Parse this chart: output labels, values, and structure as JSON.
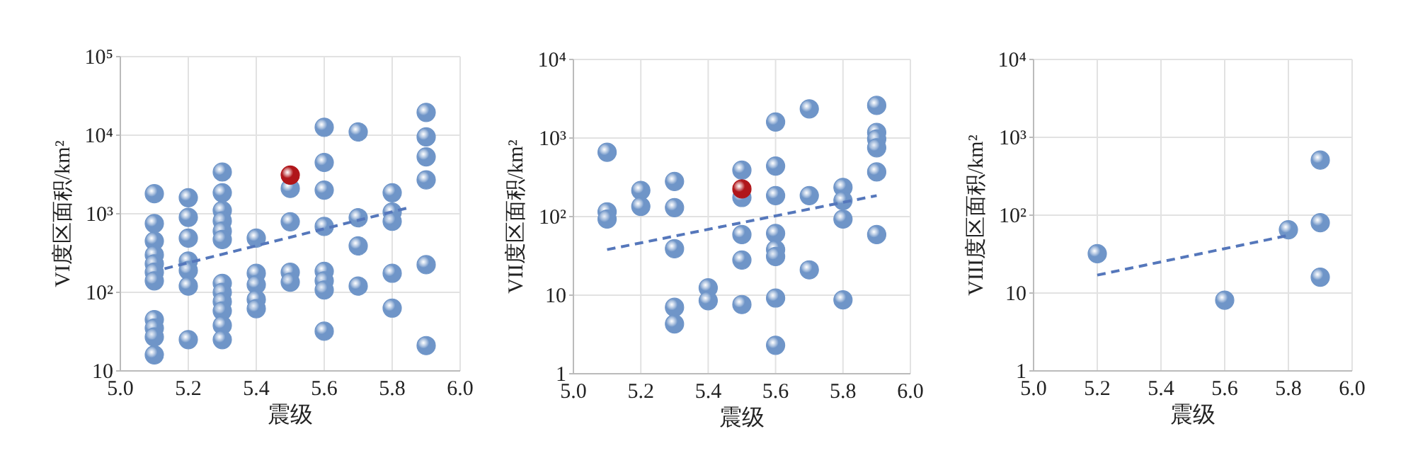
{
  "chart_data": [
    {
      "type": "scatter",
      "xlabel": "震级",
      "ylabel": "VI度区面积/km²",
      "xlim": [
        5.0,
        6.0
      ],
      "xticks": [
        {
          "value": 5.0,
          "label": "5.0"
        },
        {
          "value": 5.2,
          "label": "5.2"
        },
        {
          "value": 5.4,
          "label": "5.4"
        },
        {
          "value": 5.6,
          "label": "5.6"
        },
        {
          "value": 5.8,
          "label": "5.8"
        },
        {
          "value": 6.0,
          "label": "6.0"
        }
      ],
      "ylim": [
        10,
        100000
      ],
      "yticks": [
        {
          "value": 10,
          "label": "10"
        },
        {
          "value": 100,
          "label": "10²"
        },
        {
          "value": 1000,
          "label": "10³"
        },
        {
          "value": 10000,
          "label": "10⁴"
        },
        {
          "value": 100000,
          "label": "10⁵"
        }
      ],
      "log": "y",
      "grid": true,
      "marker": "circle",
      "series": [
        {
          "type": "scatter",
          "color": "#6f95c8",
          "x": [
            5.1,
            5.1,
            5.1,
            5.1,
            5.1,
            5.1,
            5.1,
            5.1,
            5.1,
            5.1,
            5.1,
            5.2,
            5.2,
            5.2,
            5.2,
            5.2,
            5.2,
            5.2,
            5.3,
            5.3,
            5.3,
            5.3,
            5.3,
            5.3,
            5.3,
            5.3,
            5.3,
            5.3,
            5.3,
            5.3,
            5.4,
            5.4,
            5.4,
            5.4,
            5.4,
            5.5,
            5.5,
            5.5,
            5.5,
            5.6,
            5.6,
            5.6,
            5.6,
            5.6,
            5.6,
            5.6,
            5.6,
            5.7,
            5.7,
            5.7,
            5.7,
            5.8,
            5.8,
            5.8,
            5.8,
            5.8,
            5.9,
            5.9,
            5.9,
            5.9,
            5.9,
            5.9
          ],
          "values": [
            1800,
            750,
            450,
            300,
            230,
            180,
            140,
            45,
            35,
            27,
            16,
            1600,
            900,
            490,
            250,
            190,
            120,
            25,
            3400,
            1850,
            1100,
            810,
            600,
            470,
            130,
            100,
            76,
            58,
            38,
            25,
            490,
            175,
            125,
            81,
            62,
            2100,
            790,
            180,
            135,
            12600,
            4500,
            2000,
            690,
            185,
            140,
            107,
            32,
            11000,
            890,
            390,
            120,
            1850,
            1050,
            800,
            175,
            63,
            19500,
            9500,
            5300,
            2700,
            225,
            21
          ]
        },
        {
          "type": "scatter",
          "color": "#b0161a",
          "x": [
            5.5
          ],
          "values": [
            3100
          ]
        },
        {
          "type": "line",
          "color": "#5577bb",
          "line_style": "dashed",
          "marker": "none",
          "x": [
            5.13,
            5.85
          ],
          "values": [
            200,
            1200
          ]
        }
      ]
    },
    {
      "type": "scatter",
      "xlabel": "震级",
      "ylabel": "VII度区面积/km²",
      "xlim": [
        5.0,
        6.0
      ],
      "xticks": [
        {
          "value": 5.0,
          "label": "5.0"
        },
        {
          "value": 5.2,
          "label": "5.2"
        },
        {
          "value": 5.4,
          "label": "5.4"
        },
        {
          "value": 5.6,
          "label": "5.6"
        },
        {
          "value": 5.8,
          "label": "5.8"
        },
        {
          "value": 6.0,
          "label": "6.0"
        }
      ],
      "ylim": [
        1,
        10000
      ],
      "yticks": [
        {
          "value": 1,
          "label": "1"
        },
        {
          "value": 10,
          "label": "10"
        },
        {
          "value": 100,
          "label": "10²"
        },
        {
          "value": 1000,
          "label": "10³"
        },
        {
          "value": 10000,
          "label": "10⁴"
        }
      ],
      "log": "y",
      "grid": true,
      "marker": "circle",
      "series": [
        {
          "type": "scatter",
          "color": "#6f95c8",
          "x": [
            5.1,
            5.1,
            5.1,
            5.2,
            5.2,
            5.3,
            5.3,
            5.3,
            5.3,
            5.3,
            5.4,
            5.4,
            5.5,
            5.5,
            5.5,
            5.5,
            5.5,
            5.6,
            5.6,
            5.6,
            5.6,
            5.6,
            5.6,
            5.6,
            5.6,
            5.7,
            5.7,
            5.7,
            5.8,
            5.8,
            5.8,
            5.8,
            5.9,
            5.9,
            5.9,
            5.9,
            5.9,
            5.9
          ],
          "values": [
            660,
            115,
            93,
            215,
            135,
            280,
            130,
            39,
            7,
            4.3,
            12.4,
            8.5,
            390,
            175,
            59,
            28,
            7.6,
            1600,
            440,
            185,
            61,
            38,
            31,
            9.2,
            2.3,
            2350,
            185,
            21,
            235,
            160,
            93,
            8.7,
            2600,
            1180,
            970,
            750,
            370,
            59
          ]
        },
        {
          "type": "scatter",
          "color": "#b0161a",
          "x": [
            5.5
          ],
          "values": [
            225
          ]
        },
        {
          "type": "line",
          "color": "#5577bb",
          "line_style": "dashed",
          "marker": "none",
          "x": [
            5.1,
            5.9
          ],
          "values": [
            38,
            185
          ]
        }
      ]
    },
    {
      "type": "scatter",
      "xlabel": "震级",
      "ylabel": "VIII度区面积/km²",
      "xlim": [
        5.0,
        6.0
      ],
      "xticks": [
        {
          "value": 5.0,
          "label": "5.0"
        },
        {
          "value": 5.2,
          "label": "5.2"
        },
        {
          "value": 5.4,
          "label": "5.4"
        },
        {
          "value": 5.6,
          "label": "5.6"
        },
        {
          "value": 5.8,
          "label": "5.8"
        },
        {
          "value": 6.0,
          "label": "6.0"
        }
      ],
      "ylim": [
        1,
        10000
      ],
      "yticks": [
        {
          "value": 1,
          "label": "1"
        },
        {
          "value": 10,
          "label": "10"
        },
        {
          "value": 100,
          "label": "10²"
        },
        {
          "value": 1000,
          "label": "10³"
        },
        {
          "value": 10000,
          "label": "10⁴"
        }
      ],
      "log": "y",
      "grid": true,
      "marker": "circle",
      "series": [
        {
          "type": "scatter",
          "color": "#6f95c8",
          "x": [
            5.2,
            5.6,
            5.8,
            5.9,
            5.9,
            5.9
          ],
          "values": [
            32,
            8.1,
            65,
            510,
            80,
            16
          ]
        },
        {
          "type": "line",
          "color": "#5577bb",
          "line_style": "dashed",
          "marker": "none",
          "x": [
            5.2,
            5.8
          ],
          "values": [
            17,
            55
          ]
        }
      ]
    }
  ]
}
